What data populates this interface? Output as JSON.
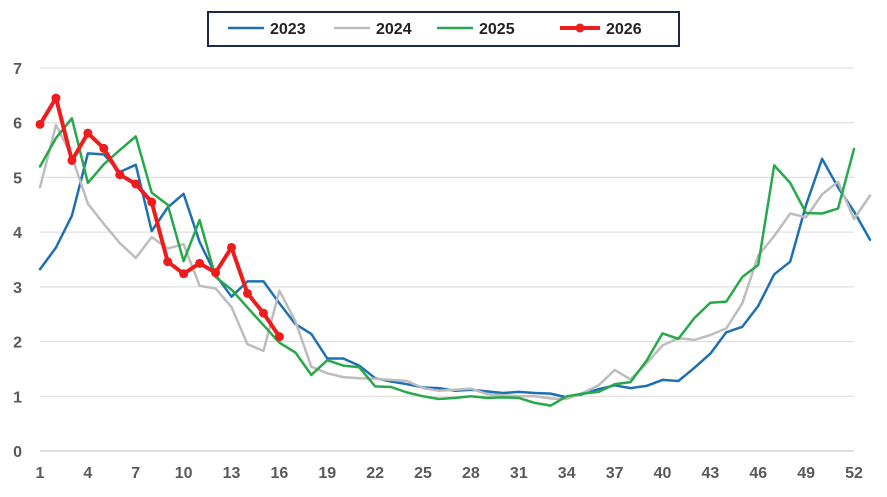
{
  "chart_data": {
    "type": "line",
    "title": "",
    "xlabel": "",
    "ylabel": "",
    "xlim": [
      1,
      52
    ],
    "ylim": [
      0,
      7
    ],
    "grid": true,
    "legend_position": "top",
    "xticks": [
      1,
      4,
      7,
      10,
      13,
      16,
      19,
      22,
      25,
      28,
      31,
      34,
      37,
      40,
      43,
      46,
      49,
      52
    ],
    "yticks": [
      0,
      1,
      2,
      3,
      4,
      5,
      6,
      7
    ],
    "series": [
      {
        "name": "2023",
        "color": "#1f6fb4",
        "markers": false,
        "values": [
          3.32,
          3.72,
          4.3,
          5.44,
          5.42,
          5.1,
          5.23,
          4.02,
          4.45,
          4.7,
          3.82,
          3.22,
          2.82,
          3.1,
          3.1,
          2.7,
          2.32,
          2.14,
          1.69,
          1.69,
          1.56,
          1.33,
          1.27,
          1.22,
          1.16,
          1.15,
          1.1,
          1.12,
          1.09,
          1.06,
          1.08,
          1.06,
          1.05,
          0.98,
          1.04,
          1.13,
          1.2,
          1.15,
          1.19,
          1.3,
          1.28,
          1.52,
          1.78,
          2.17,
          2.27,
          2.65,
          3.23,
          3.46,
          4.5,
          5.34,
          4.82,
          4.38,
          3.86
        ]
      },
      {
        "name": "2024",
        "color": "#bdbdbd",
        "markers": false,
        "values": [
          4.82,
          5.96,
          5.38,
          4.52,
          4.15,
          3.8,
          3.53,
          3.91,
          3.7,
          3.78,
          3.02,
          2.97,
          2.63,
          1.95,
          1.83,
          2.93,
          2.37,
          1.54,
          1.42,
          1.35,
          1.33,
          1.32,
          1.3,
          1.28,
          1.15,
          1.1,
          1.12,
          1.14,
          1.04,
          1.02,
          1.0,
          1.0,
          0.96,
          0.95,
          1.06,
          1.2,
          1.48,
          1.31,
          1.6,
          1.93,
          2.06,
          2.03,
          2.12,
          2.24,
          2.7,
          3.57,
          3.93,
          4.34,
          4.27,
          4.69,
          4.92,
          4.24,
          4.67
        ]
      },
      {
        "name": "2025",
        "color": "#27a84a",
        "markers": false,
        "values": [
          5.2,
          5.72,
          6.08,
          4.9,
          5.24,
          5.5,
          5.75,
          4.72,
          4.5,
          3.47,
          4.22,
          3.18,
          2.95,
          2.62,
          2.3,
          1.98,
          1.8,
          1.39,
          1.66,
          1.56,
          1.53,
          1.18,
          1.17,
          1.07,
          1.0,
          0.95,
          0.97,
          1.0,
          0.97,
          0.98,
          0.97,
          0.88,
          0.83,
          1.0,
          1.05,
          1.08,
          1.22,
          1.26,
          1.65,
          2.15,
          2.05,
          2.43,
          2.71,
          2.73,
          3.18,
          3.4,
          5.22,
          4.9,
          4.35,
          4.34,
          4.43,
          5.52
        ]
      },
      {
        "name": "2026",
        "color": "#ee1c1c",
        "markers": true,
        "values": [
          5.97,
          6.45,
          5.31,
          5.81,
          5.53,
          5.05,
          4.88,
          4.55,
          3.46,
          3.24,
          3.43,
          3.26,
          3.72,
          2.88,
          2.52,
          2.09
        ]
      }
    ]
  }
}
